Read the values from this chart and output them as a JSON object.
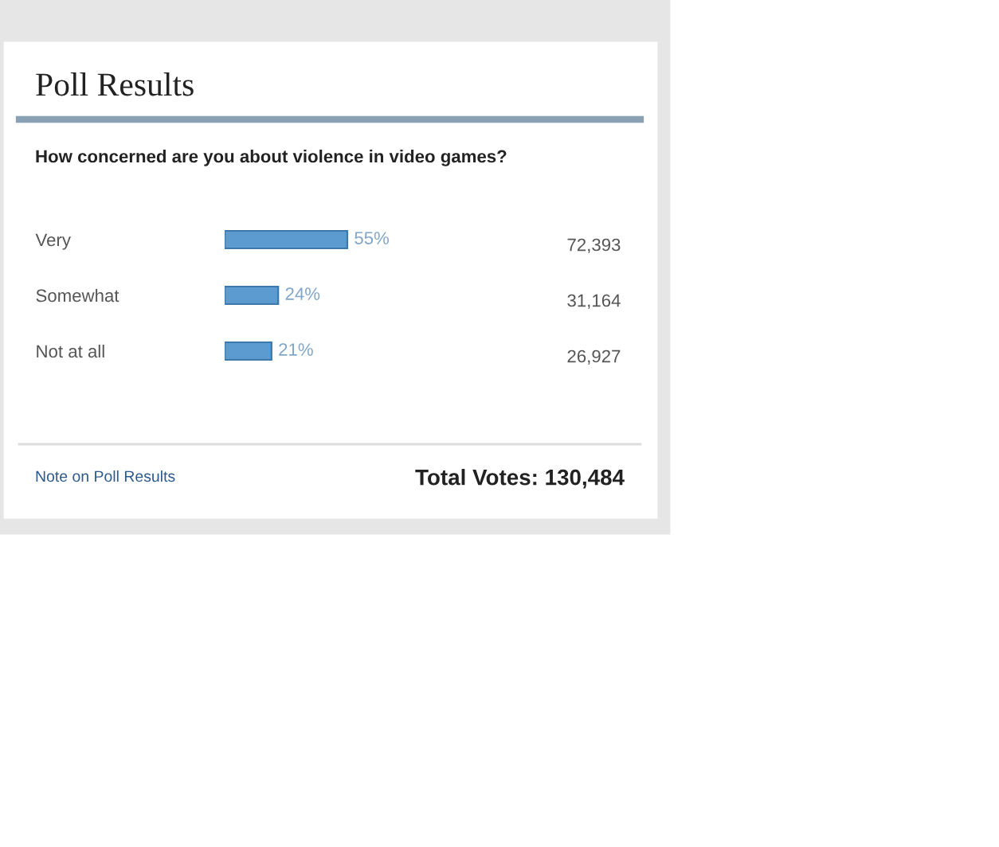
{
  "chart_data": {
    "type": "bar",
    "orientation": "horizontal",
    "title": "Poll Results",
    "subtitle": "How concerned are you about violence in video games?",
    "categories": [
      "Very",
      "Somewhat",
      "Not at all"
    ],
    "values": [
      55,
      24,
      21
    ],
    "value_labels": [
      "55%",
      "24%",
      "21%"
    ],
    "color": "#5b9bcf",
    "annotations": [
      "72,393",
      "31,164",
      "26,927",
      "Note on Poll Results",
      "Total Votes: 130,484"
    ],
    "grid": false,
    "legend": false
  }
}
